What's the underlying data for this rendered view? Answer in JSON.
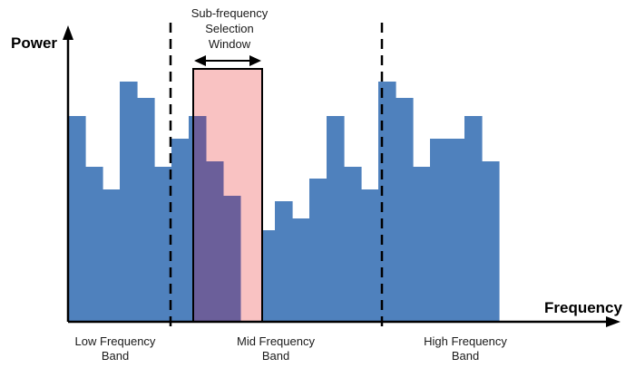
{
  "diagram": {
    "y_axis_label": "Power",
    "x_axis_label": "Frequency",
    "window_label_lines": [
      "Sub-frequency",
      "Selection",
      "Window"
    ],
    "band_labels": [
      {
        "lines": [
          "Low Frequency",
          "Band"
        ]
      },
      {
        "lines": [
          "Mid Frequency",
          "Band"
        ]
      },
      {
        "lines": [
          "High Frequency",
          "Band"
        ]
      }
    ],
    "spectrum_levels": [
      128,
      184,
      209,
      90,
      108,
      184,
      153,
      128,
      178,
      216,
      280,
      254,
      222,
      241,
      197,
      128,
      184,
      209,
      90,
      108,
      184,
      153,
      153,
      128,
      178
    ],
    "window_bins": [
      6,
      9
    ],
    "colors": {
      "spectrum": "#4f81bd",
      "window_fill": "#f9c2c2",
      "overlap": "#6b5f9a",
      "axis": "#000000"
    }
  }
}
